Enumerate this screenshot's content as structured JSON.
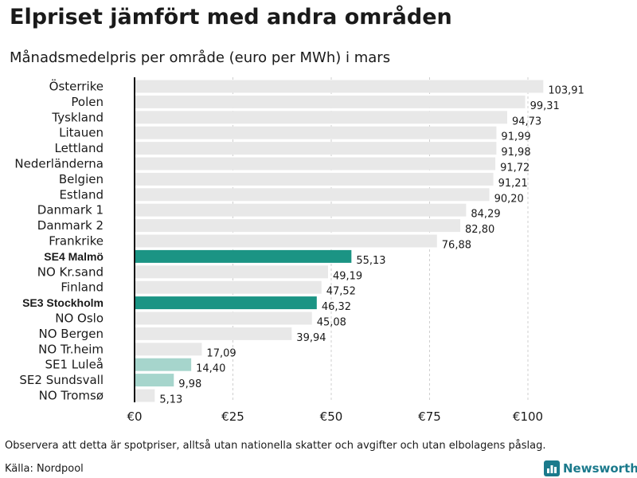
{
  "header": {
    "title": "Elpriset jämfört med andra områden",
    "subtitle": "Månadsmedelpris per område (euro per MWh) i mars"
  },
  "footer": {
    "note": "Observera att detta är spotpriser, alltså utan nationella skatter och avgifter och utan elbolagens påslag.",
    "source": "Källa: Nordpool",
    "brand": "Newsworthy",
    "brand_icon": "bar-chart-logo-icon"
  },
  "colors": {
    "default_bar": "#e8e8e8",
    "highlight_bar": "#1b9484",
    "light_highlight_bar": "#a6d5cc",
    "grid": "#cfcfcf",
    "axis": "#111111",
    "brand": "#1b7a8c"
  },
  "chart_data": {
    "type": "bar",
    "orientation": "horizontal",
    "title": "Elpriset jämfört med andra områden",
    "subtitle": "Månadsmedelpris per område (euro per MWh) i mars",
    "xlabel": "",
    "ylabel": "",
    "xlim": [
      0,
      100
    ],
    "grid": true,
    "ticks": [
      {
        "value": 0,
        "label": "€0"
      },
      {
        "value": 25,
        "label": "€25"
      },
      {
        "value": 50,
        "label": "€50"
      },
      {
        "value": 75,
        "label": "€75"
      },
      {
        "value": 100,
        "label": "€100"
      }
    ],
    "categories": [
      "Österrike",
      "Polen",
      "Tyskland",
      "Litauen",
      "Lettland",
      "Nederländerna",
      "Belgien",
      "Estland",
      "Danmark  1",
      "Danmark  2",
      "Frankrike",
      "SE4 Malmö",
      "NO Kr.sand",
      "Finland",
      "SE3 Stockholm",
      "NO Oslo",
      "NO Bergen",
      "NO Tr.heim",
      "SE1  Luleå",
      "SE2  Sundsvall",
      "NO Tromsø"
    ],
    "values": [
      103.91,
      99.31,
      94.73,
      91.99,
      91.98,
      91.72,
      91.21,
      90.2,
      84.29,
      82.8,
      76.88,
      55.13,
      49.19,
      47.52,
      46.32,
      45.08,
      39.94,
      17.09,
      14.4,
      9.98,
      5.13
    ],
    "value_labels": [
      "103,91",
      "99,31",
      "94,73",
      "91,99",
      "91,98",
      "91,72",
      "91,21",
      "90,20",
      "84,29",
      "82,80",
      "76,88",
      "55,13",
      "49,19",
      "47,52",
      "46,32",
      "45,08",
      "39,94",
      "17,09",
      "14,40",
      "9,98",
      "5,13"
    ],
    "highlight": [
      "default",
      "default",
      "default",
      "default",
      "default",
      "default",
      "default",
      "default",
      "default",
      "default",
      "default",
      "strong",
      "default",
      "default",
      "strong",
      "default",
      "default",
      "default",
      "light",
      "light",
      "default"
    ]
  }
}
